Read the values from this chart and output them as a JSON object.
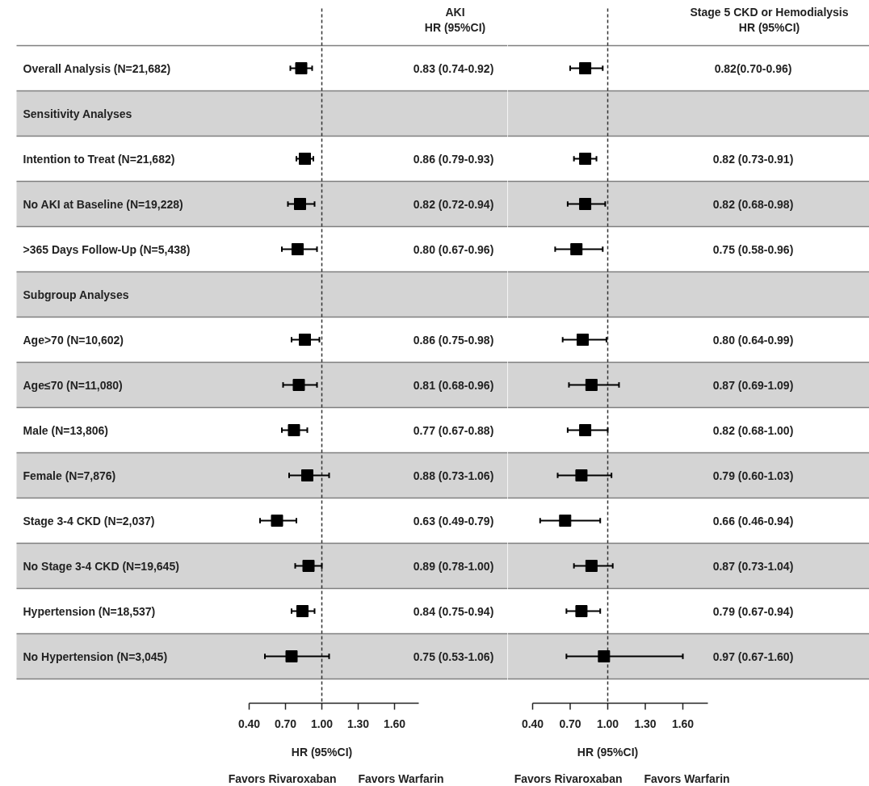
{
  "chart_data": [
    {
      "type": "scatter",
      "orientation": "horizontal",
      "xlabel": "HR (95%CI)",
      "categories": [
        "Overall Analysis  (N=21,682)",
        "Sensitivity Analyses",
        "Intention to Treat (N=21,682)",
        "No AKI at Baseline (N=19,228)",
        ">365 Days Follow-Up (N=5,438)",
        "Subgroup Analyses",
        "Age>70  (N=10,602)",
        "Age≤70 (N=11,080)",
        "Male (N=13,806)",
        "Female  (N=7,876)",
        "Stage 3-4 CKD (N=2,037)",
        "No Stage 3-4 CKD (N=19,645)",
        "Hypertension  (N=18,537)",
        "No Hypertension  (N=3,045)"
      ],
      "values": [
        0.83,
        null,
        0.86,
        0.82,
        0.8,
        null,
        0.86,
        0.81,
        0.77,
        0.88,
        0.63,
        0.89,
        0.84,
        0.75
      ],
      "errors": [
        [
          0.74,
          0.92
        ],
        null,
        [
          0.79,
          0.93
        ],
        [
          0.72,
          0.94
        ],
        [
          0.67,
          0.96
        ],
        null,
        [
          0.75,
          0.98
        ],
        [
          0.68,
          0.96
        ],
        [
          0.67,
          0.88
        ],
        [
          0.73,
          1.06
        ],
        [
          0.49,
          0.79
        ],
        [
          0.78,
          1.0
        ],
        [
          0.75,
          0.94
        ],
        [
          0.53,
          1.06
        ]
      ],
      "value_labels": [
        "0.83 (0.74-0.92)",
        null,
        "0.86 (0.79-0.93)",
        "0.82 (0.72-0.94)",
        "0.80 (0.67-0.96)",
        null,
        "0.86 (0.75-0.98)",
        "0.81 (0.68-0.96)",
        "0.77 (0.67-0.88)",
        "0.88 (0.73-1.06)",
        "0.63 (0.49-0.79)",
        "0.89 (0.78-1.00)",
        "0.84 (0.75-0.94)",
        "0.75 (0.53-1.06)"
      ],
      "color": "#000000",
      "marker": "square",
      "xlim": [
        0.4,
        1.8
      ],
      "xticks": [
        {
          "value": 0.4,
          "label": "0.40"
        },
        {
          "value": 0.7,
          "label": "0.70"
        },
        {
          "value": 1.0,
          "label": "1.00"
        },
        {
          "value": 1.3,
          "label": "1.30"
        },
        {
          "value": 1.6,
          "label": "1.60"
        }
      ],
      "ref_lines": [
        {
          "axis": "x",
          "value": 1.0,
          "line_style": "dashed"
        }
      ],
      "bands": [
        {
          "axis": "y",
          "from": "Sensitivity Analyses",
          "to": "Sensitivity Analyses",
          "color": "#d4d4d4"
        },
        {
          "axis": "y",
          "from": "No AKI at Baseline (N=19,228)",
          "to": "No AKI at Baseline (N=19,228)",
          "color": "#d4d4d4"
        },
        {
          "axis": "y",
          "from": "Subgroup Analyses",
          "to": "Subgroup Analyses",
          "color": "#d4d4d4"
        },
        {
          "axis": "y",
          "from": "Age≤70 (N=11,080)",
          "to": "Age≤70 (N=11,080)",
          "color": "#d4d4d4"
        },
        {
          "axis": "y",
          "from": "Female  (N=7,876)",
          "to": "Female  (N=7,876)",
          "color": "#d4d4d4"
        },
        {
          "axis": "y",
          "from": "No Stage 3-4 CKD (N=19,645)",
          "to": "No Stage 3-4 CKD (N=19,645)",
          "color": "#d4d4d4"
        },
        {
          "axis": "y",
          "from": "No Hypertension  (N=3,045)",
          "to": "No Hypertension  (N=3,045)",
          "color": "#d4d4d4"
        }
      ],
      "annotations": [
        "AKI",
        "HR (95%CI)",
        "Favors Rivaroxaban",
        "Favors Warfarin"
      ]
    },
    {
      "type": "scatter",
      "orientation": "horizontal",
      "xlabel": "HR (95%CI)",
      "categories": [
        "Overall Analysis  (N=21,682)",
        "Sensitivity Analyses",
        "Intention to Treat (N=21,682)",
        "No AKI at Baseline (N=19,228)",
        ">365 Days Follow-Up (N=5,438)",
        "Subgroup Analyses",
        "Age>70  (N=10,602)",
        "Age≤70 (N=11,080)",
        "Male (N=13,806)",
        "Female  (N=7,876)",
        "Stage 3-4 CKD (N=2,037)",
        "No Stage 3-4 CKD (N=19,645)",
        "Hypertension  (N=18,537)",
        "No Hypertension  (N=3,045)"
      ],
      "values": [
        0.82,
        null,
        0.82,
        0.82,
        0.75,
        null,
        0.8,
        0.87,
        0.82,
        0.79,
        0.66,
        0.87,
        0.79,
        0.97
      ],
      "errors": [
        [
          0.7,
          0.96
        ],
        null,
        [
          0.73,
          0.91
        ],
        [
          0.68,
          0.98
        ],
        [
          0.58,
          0.96
        ],
        null,
        [
          0.64,
          0.99
        ],
        [
          0.69,
          1.09
        ],
        [
          0.68,
          1.0
        ],
        [
          0.6,
          1.03
        ],
        [
          0.46,
          0.94
        ],
        [
          0.73,
          1.04
        ],
        [
          0.67,
          0.94
        ],
        [
          0.67,
          1.6
        ]
      ],
      "value_labels": [
        "0.82(0.70-0.96)",
        null,
        "0.82 (0.73-0.91)",
        "0.82 (0.68-0.98)",
        "0.75 (0.58-0.96)",
        null,
        "0.80 (0.64-0.99)",
        "0.87 (0.69-1.09)",
        "0.82 (0.68-1.00)",
        "0.79 (0.60-1.03)",
        "0.66 (0.46-0.94)",
        "0.87 (0.73-1.04)",
        "0.79 (0.67-0.94)",
        "0.97 (0.67-1.60)"
      ],
      "color": "#000000",
      "marker": "square",
      "xlim": [
        0.4,
        1.8
      ],
      "xticks": [
        {
          "value": 0.4,
          "label": "0.40"
        },
        {
          "value": 0.7,
          "label": "0.70"
        },
        {
          "value": 1.0,
          "label": "1.00"
        },
        {
          "value": 1.3,
          "label": "1.30"
        },
        {
          "value": 1.6,
          "label": "1.60"
        }
      ],
      "ref_lines": [
        {
          "axis": "x",
          "value": 1.0,
          "line_style": "dashed"
        }
      ],
      "tick_labels": "x",
      "bands": [
        {
          "axis": "y",
          "from": "Sensitivity Analyses",
          "to": "Sensitivity Analyses",
          "color": "#d4d4d4"
        },
        {
          "axis": "y",
          "from": "No AKI at Baseline (N=19,228)",
          "to": "No AKI at Baseline (N=19,228)",
          "color": "#d4d4d4"
        },
        {
          "axis": "y",
          "from": "Subgroup Analyses",
          "to": "Subgroup Analyses",
          "color": "#d4d4d4"
        },
        {
          "axis": "y",
          "from": "Age≤70 (N=11,080)",
          "to": "Age≤70 (N=11,080)",
          "color": "#d4d4d4"
        },
        {
          "axis": "y",
          "from": "Female  (N=7,876)",
          "to": "Female  (N=7,876)",
          "color": "#d4d4d4"
        },
        {
          "axis": "y",
          "from": "No Stage 3-4 CKD (N=19,645)",
          "to": "No Stage 3-4 CKD (N=19,645)",
          "color": "#d4d4d4"
        },
        {
          "axis": "y",
          "from": "No Hypertension  (N=3,045)",
          "to": "No Hypertension  (N=3,045)",
          "color": "#d4d4d4"
        }
      ],
      "annotations": [
        "Stage 5 CKD or Hemodialysis",
        "HR (95%CI)",
        "Favors Rivaroxaban",
        "Favors Warfarin"
      ]
    }
  ]
}
